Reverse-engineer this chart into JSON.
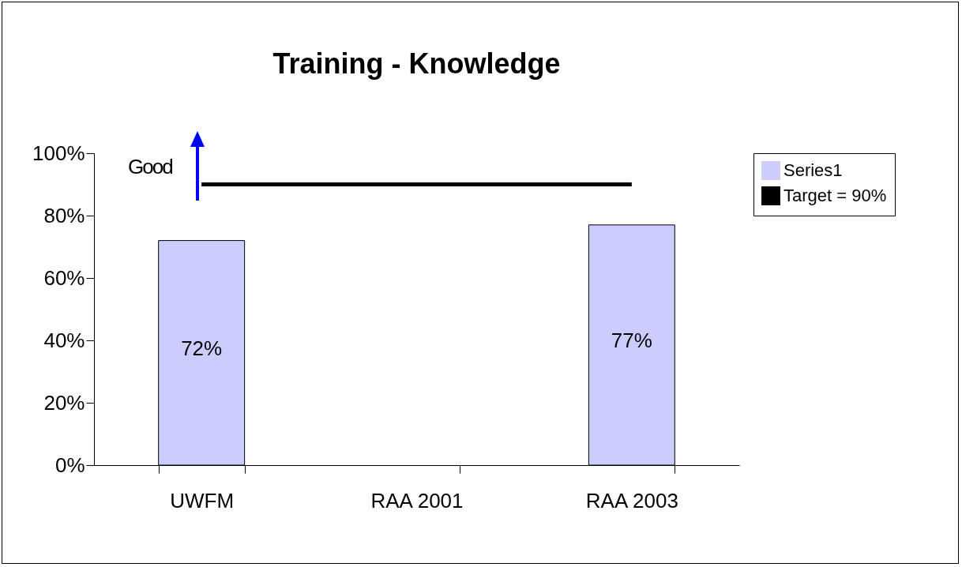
{
  "chart_data": {
    "type": "bar",
    "title": "Training - Knowledge",
    "categories": [
      "UWFM",
      "RAA 2001",
      "RAA 2003"
    ],
    "series": [
      {
        "name": "Series1",
        "color": "#ccccff",
        "values": [
          72,
          null,
          77
        ],
        "value_labels": [
          "72%",
          null,
          "77%"
        ]
      },
      {
        "name": "Target = 90%",
        "type": "line",
        "color": "#000000",
        "values": [
          90,
          90,
          90
        ]
      }
    ],
    "ylim": [
      0,
      100
    ],
    "yticks": [
      {
        "value": 0,
        "label": "0%"
      },
      {
        "value": 20,
        "label": "20%"
      },
      {
        "value": 40,
        "label": "40%"
      },
      {
        "value": 60,
        "label": "60%"
      },
      {
        "value": 80,
        "label": "80%"
      },
      {
        "value": 100,
        "label": "100%"
      }
    ],
    "annotations": [
      "Good"
    ],
    "grid": false,
    "legend": "right"
  }
}
